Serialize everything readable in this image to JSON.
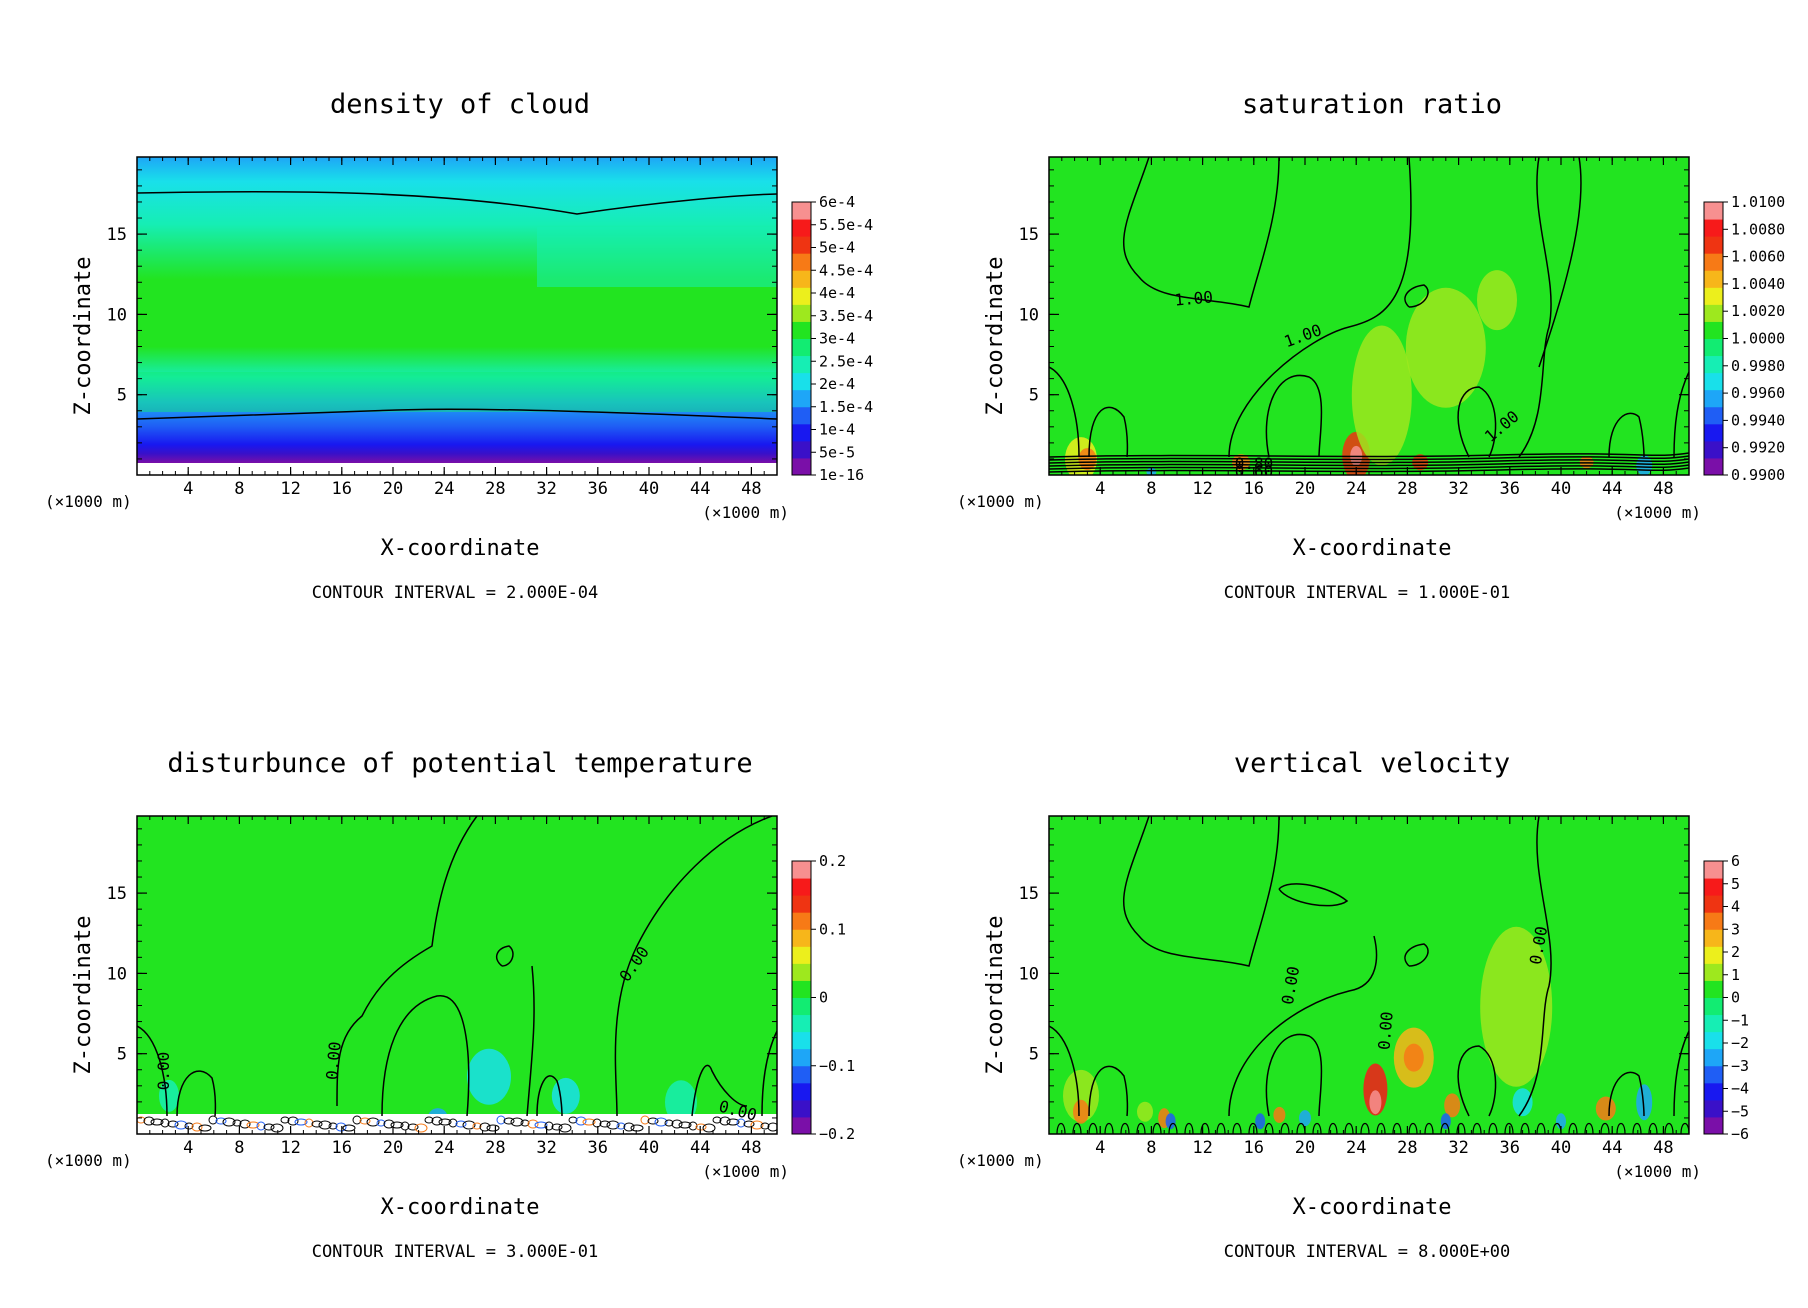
{
  "palette": [
    "#7a0fa8",
    "#3a10c8",
    "#1818f0",
    "#1f5ef5",
    "#1ea6f7",
    "#19e0ea",
    "#16eeb4",
    "#12ec72",
    "#22e420",
    "#9ee81e",
    "#ecef1c",
    "#f7b61a",
    "#f77a16",
    "#ef3412",
    "#f71a1a",
    "#f79090"
  ],
  "chart_data": [
    {
      "type": "heatmap",
      "title": "density of cloud",
      "xlabel": "X-coordinate",
      "ylabel": "Z-coordinate",
      "x_unit": "(×1000 m)",
      "x_ticks": [
        "4",
        "8",
        "12",
        "16",
        "20",
        "24",
        "28",
        "32",
        "36",
        "40",
        "44",
        "48"
      ],
      "y_ticks": [
        "5",
        "10",
        "15"
      ],
      "xlim": [
        0,
        50
      ],
      "ylim": [
        0,
        19.8
      ],
      "colorbar_labels": [
        "1e-16",
        "5e-5",
        "1e-4",
        "1.5e-4",
        "2e-4",
        "2.5e-4",
        "3e-4",
        "3.5e-4",
        "4e-4",
        "4.5e-4",
        "5e-4",
        "5.5e-4",
        "6e-4"
      ],
      "contour_interval": "CONTOUR INTERVAL = 2.000E-04",
      "contour_labels": []
    },
    {
      "type": "heatmap",
      "title": "saturation ratio",
      "xlabel": "X-coordinate",
      "ylabel": "Z-coordinate",
      "x_unit": "(×1000 m)",
      "x_ticks": [
        "4",
        "8",
        "12",
        "16",
        "20",
        "24",
        "28",
        "32",
        "36",
        "40",
        "44",
        "48"
      ],
      "y_ticks": [
        "5",
        "10",
        "15"
      ],
      "xlim": [
        0,
        50
      ],
      "ylim": [
        0,
        19.8
      ],
      "colorbar_labels": [
        "0.9900",
        "0.9920",
        "0.9940",
        "0.9960",
        "0.9980",
        "1.0000",
        "1.0020",
        "1.0040",
        "1.0060",
        "1.0080",
        "1.0100"
      ],
      "contour_interval": "CONTOUR INTERVAL = 1.000E-01",
      "contour_labels": [
        "1.00",
        "1.00",
        "1.00",
        "0.80",
        "0.60"
      ]
    },
    {
      "type": "heatmap",
      "title": "disturbunce of potential temperature",
      "xlabel": "X-coordinate",
      "ylabel": "Z-coordinate",
      "x_unit": "(×1000 m)",
      "x_ticks": [
        "4",
        "8",
        "12",
        "16",
        "20",
        "24",
        "28",
        "32",
        "36",
        "40",
        "44",
        "48"
      ],
      "y_ticks": [
        "5",
        "10",
        "15"
      ],
      "xlim": [
        0,
        50
      ],
      "ylim": [
        0,
        19.8
      ],
      "colorbar_labels": [
        "−0.2",
        "−0.1",
        "0",
        "0.1",
        "0.2"
      ],
      "contour_interval": "CONTOUR INTERVAL = 3.000E-01",
      "contour_labels": [
        "0.00",
        "0.00",
        "0.00",
        "0.00"
      ]
    },
    {
      "type": "heatmap",
      "title": "vertical velocity",
      "xlabel": "X-coordinate",
      "ylabel": "Z-coordinate",
      "x_unit": "(×1000 m)",
      "x_ticks": [
        "4",
        "8",
        "12",
        "16",
        "20",
        "24",
        "28",
        "32",
        "36",
        "40",
        "44",
        "48"
      ],
      "y_ticks": [
        "5",
        "10",
        "15"
      ],
      "xlim": [
        0,
        50
      ],
      "ylim": [
        0,
        19.8
      ],
      "colorbar_labels": [
        "−6",
        "−5",
        "−4",
        "−3",
        "−2",
        "−1",
        "0",
        "1",
        "2",
        "3",
        "4",
        "5",
        "6"
      ],
      "contour_interval": "CONTOUR INTERVAL = 8.000E+00",
      "contour_labels": [
        "0.00",
        "0.00",
        "0.00"
      ]
    }
  ]
}
